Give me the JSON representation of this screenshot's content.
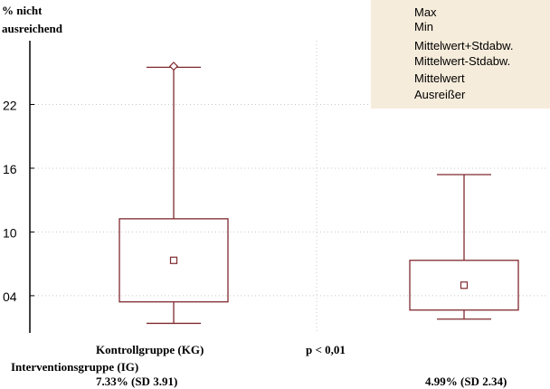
{
  "chart_data": {
    "type": "boxplot",
    "ylabel_lines": [
      "% nicht",
      "ausreichend"
    ],
    "yticks": [
      "22",
      "16",
      "10",
      "04"
    ],
    "ytick_values": [
      22,
      16,
      10,
      4
    ],
    "ylim": [
      0.5,
      28
    ],
    "grid": "horizontal dotted",
    "legend_position": "top-right",
    "legend": {
      "max": "Max",
      "min": "Min",
      "box_upper": "Mittelwert+Stdabw.",
      "box_lower": "Mittelwert-Stdabw.",
      "mean": "Mittelwert",
      "outlier": "Ausreißer"
    },
    "groups": [
      {
        "name": "Kontrollgruppe (KG)",
        "mean": 7.33,
        "sd": 3.91,
        "min": 1.4,
        "max": 25.5,
        "outlier": 25.6,
        "stat_label": "7.33% (SD 3.91)"
      },
      {
        "name": "Interventionsgruppe (IG)",
        "mean": 4.99,
        "sd": 2.34,
        "min": 1.8,
        "max": 15.4,
        "outlier": null,
        "stat_label": "4.99% (SD 2.34)"
      }
    ],
    "annotation": "p < 0,01",
    "colors": {
      "box": "#7f2a2f",
      "axis": "#000000",
      "grid": "#c8c8c8",
      "legend_bg": "#f6ecdb"
    }
  }
}
